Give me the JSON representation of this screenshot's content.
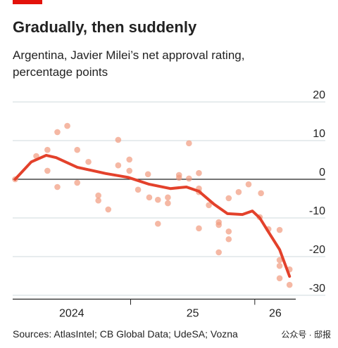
{
  "chart_data": {
    "type": "scatter",
    "title": "Gradually, then suddenly",
    "subtitle": [
      "Argentina, Javier Milei’s net approval rating,",
      "percentage points"
    ],
    "source": "Sources: AtlasIntel; CB Global Data; UdeSA; Vozna",
    "watermark": "公众号 · 邸报",
    "xlim": [
      2024.05,
      2026.33
    ],
    "xticks": [
      {
        "value": 2024,
        "label": "2024"
      },
      {
        "value": 2025,
        "label": "25"
      },
      {
        "value": 2026,
        "label": "26"
      }
    ],
    "ylim": [
      -31,
      22
    ],
    "yticks": [
      20,
      10,
      0,
      -10,
      -20,
      -30
    ],
    "grid": true,
    "series": [
      {
        "type": "scatter",
        "color": "#f19a7e",
        "x": [
          2024.07,
          2024.24,
          2024.33,
          2024.33,
          2024.41,
          2024.41,
          2024.49,
          2024.57,
          2024.57,
          2024.66,
          2024.74,
          2024.74,
          2024.82,
          2024.9,
          2024.9,
          2024.99,
          2024.99,
          2025.06,
          2025.14,
          2025.15,
          2025.22,
          2025.22,
          2025.3,
          2025.3,
          2025.39,
          2025.39,
          2025.47,
          2025.47,
          2025.55,
          2025.55,
          2025.55,
          2025.63,
          2025.55,
          2025.71,
          2025.71,
          2025.71,
          2025.79,
          2025.79,
          2025.79,
          2025.87,
          2025.95,
          2026.05,
          2026.04,
          2026.11,
          2026.2,
          2026.2,
          2026.2,
          2026.2,
          2026.28,
          2026.28
        ],
        "values": [
          0,
          6,
          7.6,
          2.2,
          12.2,
          -2,
          13.8,
          7.6,
          -0.9,
          4.5,
          -4.2,
          -5.5,
          -7.8,
          10.2,
          3.6,
          5.1,
          2.2,
          -2.7,
          1.3,
          -4.7,
          -11.5,
          -5.3,
          -6.2,
          -4.7,
          1.1,
          0.4,
          9.3,
          0.2,
          1.6,
          -2.4,
          -3.3,
          -6.7,
          -12.7,
          -11.1,
          -11.8,
          -18.9,
          -13.5,
          -15.5,
          -4.9,
          -3.3,
          -1.3,
          -3.6,
          -9.8,
          -12.9,
          -13.1,
          -20.9,
          -22.4,
          -25.6,
          -23.3,
          -27.3
        ]
      },
      {
        "type": "line",
        "color": "#e3412b",
        "x": [
          2024.07,
          2024.2,
          2024.32,
          2024.4,
          2024.57,
          2024.8,
          2024.98,
          2025.15,
          2025.32,
          2025.45,
          2025.55,
          2025.67,
          2025.78,
          2025.9,
          2025.98,
          2026.04,
          2026.11,
          2026.2,
          2026.28
        ],
        "values": [
          0,
          4.5,
          6.2,
          5.6,
          3.1,
          1.5,
          0.5,
          -1.3,
          -2.4,
          -2,
          -3.1,
          -6.4,
          -8.9,
          -9.1,
          -8.2,
          -10,
          -13.6,
          -18.2,
          -25.1
        ]
      }
    ]
  }
}
